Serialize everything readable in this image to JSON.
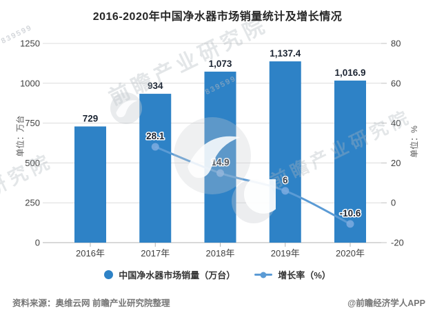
{
  "title": "2016-2020年中国净水器市场销量统计及增长情况",
  "watermark": {
    "text": "前瞻产业研究院",
    "digits": "839599"
  },
  "legend": {
    "items": [
      {
        "label": "中国净水器市场销量（万台）",
        "marker": "circle",
        "color": "#2e82c6"
      },
      {
        "label": "增长率（%）",
        "marker": "line-dot",
        "color": "#5b9bd5"
      }
    ]
  },
  "footer": {
    "source": "资料来源：奥维云网 前瞻产业研究院整理",
    "credit": "@前瞻经济学人APP"
  },
  "chart_data": {
    "type": "bar+line combo",
    "title": "2016-2020年中国净水器市场销量统计及增长情况",
    "categories": [
      "2016年",
      "2017年",
      "2018年",
      "2019年",
      "2020年"
    ],
    "series": [
      {
        "name": "中国净水器市场销量（万台）",
        "type": "bar",
        "axis": "left",
        "color": "#2e82c6",
        "values": [
          729,
          934,
          1073,
          1137.4,
          1016.9
        ],
        "labels": [
          "729",
          "934",
          "1,073",
          "1,137.4",
          "1,016.9"
        ]
      },
      {
        "name": "增长率（%）",
        "type": "line",
        "axis": "right",
        "color": "#5b9bd5",
        "marker_color": "#7cabdf",
        "values": [
          null,
          28.1,
          14.9,
          6,
          -10.6
        ],
        "labels": [
          null,
          "28.1",
          "14.9",
          "6",
          "-10.6"
        ]
      }
    ],
    "left_axis": {
      "name": "单位：万台",
      "min": 0,
      "max": 1250,
      "ticks": [
        0,
        250,
        500,
        750,
        1000,
        1250
      ]
    },
    "right_axis": {
      "name": "单位：%",
      "min": -20,
      "max": 80,
      "ticks": [
        -20,
        0,
        20,
        40,
        60,
        80
      ]
    },
    "grid": true,
    "legend_position": "bottom",
    "label_color": "#1b2432",
    "tick_color": "#3f3f3f",
    "grid_color": "#dcdcdc",
    "axis_color": "#b0b0b0"
  }
}
